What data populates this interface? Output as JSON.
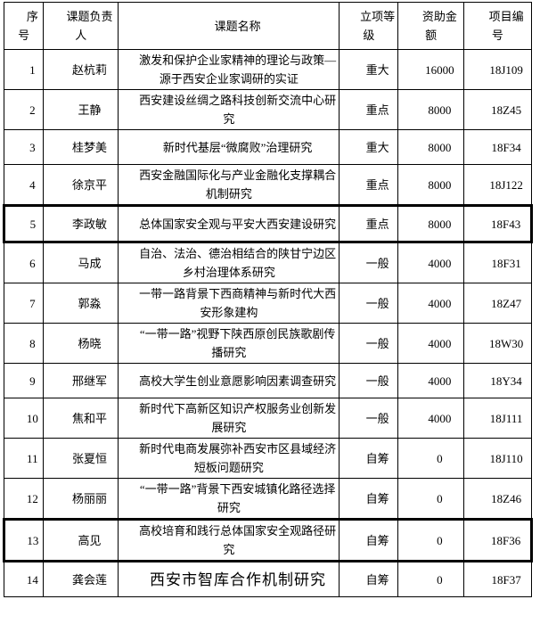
{
  "table": {
    "headers": [
      "序号",
      "课题负责人",
      "课题名称",
      "立项等级",
      "资助金额",
      "项目编号"
    ],
    "rows": [
      {
        "no": "1",
        "leader": "赵杭莉",
        "title": "激发和保护企业家精神的理论与政策—源于西安企业家调研的实证",
        "level": "重大",
        "amount": "16000",
        "code": "18J109",
        "highlight": false,
        "title_large": false
      },
      {
        "no": "2",
        "leader": "王静",
        "title": "西安建设丝绸之路科技创新交流中心研究",
        "level": "重点",
        "amount": "8000",
        "code": "18Z45",
        "highlight": false,
        "title_large": false
      },
      {
        "no": "3",
        "leader": "桂梦美",
        "title": "新时代基层“微腐败”治理研究",
        "level": "重大",
        "amount": "8000",
        "code": "18F34",
        "highlight": false,
        "title_large": false
      },
      {
        "no": "4",
        "leader": "徐京平",
        "title": "西安金融国际化与产业金融化支撑耦合机制研究",
        "level": "重点",
        "amount": "8000",
        "code": "18J122",
        "highlight": false,
        "title_large": false
      },
      {
        "no": "5",
        "leader": "李政敏",
        "title": "总体国家安全观与平安大西安建设研究",
        "level": "重点",
        "amount": "8000",
        "code": "18F43",
        "highlight": true,
        "title_large": false
      },
      {
        "no": "6",
        "leader": "马成",
        "title": "自治、法治、德治相结合的陕甘宁边区乡村治理体系研究",
        "level": "一般",
        "amount": "4000",
        "code": "18F31",
        "highlight": false,
        "title_large": false
      },
      {
        "no": "7",
        "leader": "郭淼",
        "title": "一带一路背景下西商精神与新时代大西安形象建构",
        "level": "一般",
        "amount": "4000",
        "code": "18Z47",
        "highlight": false,
        "title_large": false
      },
      {
        "no": "8",
        "leader": "杨晓",
        "title": "“一带一路”视野下陕西原创民族歌剧传播研究",
        "level": "一般",
        "amount": "4000",
        "code": "18W30",
        "highlight": false,
        "title_large": false
      },
      {
        "no": "9",
        "leader": "邢继军",
        "title": "高校大学生创业意愿影响因素调查研究",
        "level": "一般",
        "amount": "4000",
        "code": "18Y34",
        "highlight": false,
        "title_large": false
      },
      {
        "no": "10",
        "leader": "焦和平",
        "title": "新时代下高新区知识产权服务业创新发展研究",
        "level": "一般",
        "amount": "4000",
        "code": "18J111",
        "highlight": false,
        "title_large": false
      },
      {
        "no": "11",
        "leader": "张夏恒",
        "title": "新时代电商发展弥补西安市区县域经济短板问题研究",
        "level": "自筹",
        "amount": "0",
        "code": "18J110",
        "highlight": false,
        "title_large": false
      },
      {
        "no": "12",
        "leader": "杨丽丽",
        "title": "“一带一路”背景下西安城镇化路径选择研究",
        "level": "自筹",
        "amount": "0",
        "code": "18Z46",
        "highlight": false,
        "title_large": false
      },
      {
        "no": "13",
        "leader": "高见",
        "title": "高校培育和践行总体国家安全观路径研究",
        "level": "自筹",
        "amount": "0",
        "code": "18F36",
        "highlight": true,
        "title_large": false
      },
      {
        "no": "14",
        "leader": "龚会莲",
        "title": "西安市智库合作机制研究",
        "level": "自筹",
        "amount": "0",
        "code": "18F37",
        "highlight": false,
        "title_large": true
      }
    ]
  },
  "colors": {
    "border": "#000000",
    "background": "#ffffff",
    "text": "#000000",
    "highlight_border": "#000000"
  }
}
